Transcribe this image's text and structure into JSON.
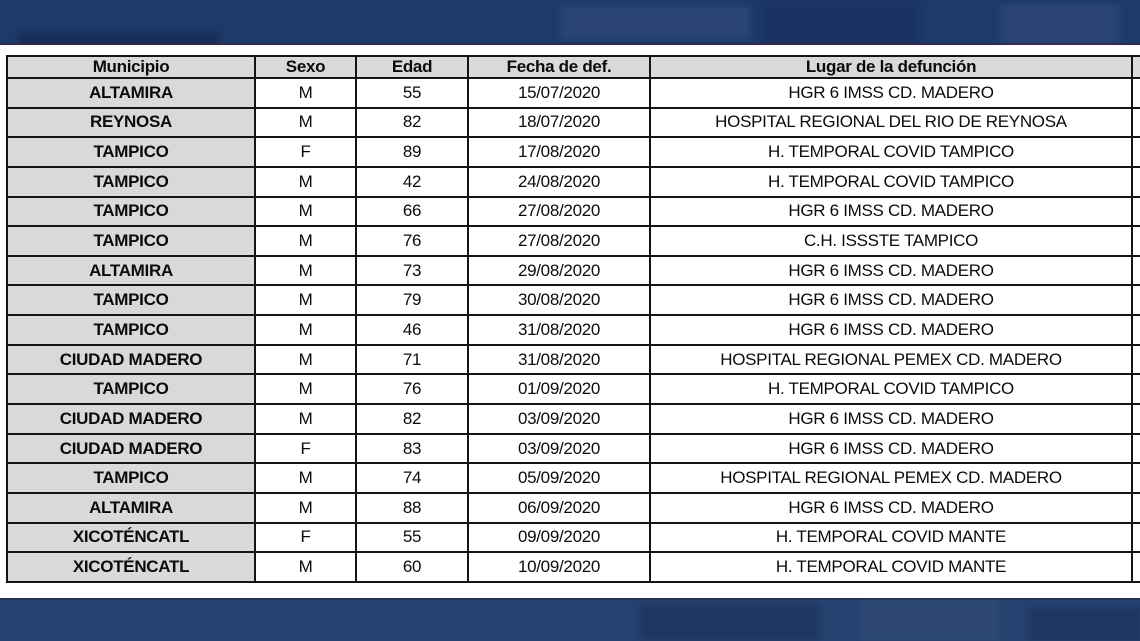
{
  "page": {
    "background": "#ffffff",
    "banner_color": "#1e3a6b",
    "banner_bottom_color": "#25416f"
  },
  "table": {
    "header_bg": "#d9d9d9",
    "border_color": "#141414",
    "columns": [
      "Municipio",
      "Sexo",
      "Edad",
      "Fecha de def.",
      "Lugar de la defunción"
    ],
    "rows": [
      [
        "ALTAMIRA",
        "M",
        "55",
        "15/07/2020",
        "HGR 6 IMSS CD. MADERO"
      ],
      [
        "REYNOSA",
        "M",
        "82",
        "18/07/2020",
        "HOSPITAL REGIONAL DEL RIO DE REYNOSA"
      ],
      [
        "TAMPICO",
        "F",
        "89",
        "17/08/2020",
        "H. TEMPORAL COVID TAMPICO"
      ],
      [
        "TAMPICO",
        "M",
        "42",
        "24/08/2020",
        "H. TEMPORAL COVID TAMPICO"
      ],
      [
        "TAMPICO",
        "M",
        "66",
        "27/08/2020",
        "HGR 6 IMSS CD. MADERO"
      ],
      [
        "TAMPICO",
        "M",
        "76",
        "27/08/2020",
        "C.H. ISSSTE TAMPICO"
      ],
      [
        "ALTAMIRA",
        "M",
        "73",
        "29/08/2020",
        "HGR 6 IMSS CD. MADERO"
      ],
      [
        "TAMPICO",
        "M",
        "79",
        "30/08/2020",
        "HGR 6 IMSS CD. MADERO"
      ],
      [
        "TAMPICO",
        "M",
        "46",
        "31/08/2020",
        "HGR 6 IMSS CD. MADERO"
      ],
      [
        "CIUDAD MADERO",
        "M",
        "71",
        "31/08/2020",
        "HOSPITAL REGIONAL PEMEX CD. MADERO"
      ],
      [
        "TAMPICO",
        "M",
        "76",
        "01/09/2020",
        "H. TEMPORAL COVID TAMPICO"
      ],
      [
        "CIUDAD MADERO",
        "M",
        "82",
        "03/09/2020",
        "HGR 6 IMSS CD. MADERO"
      ],
      [
        "CIUDAD MADERO",
        "F",
        "83",
        "03/09/2020",
        "HGR 6 IMSS CD. MADERO"
      ],
      [
        "TAMPICO",
        "M",
        "74",
        "05/09/2020",
        "HOSPITAL REGIONAL PEMEX CD. MADERO"
      ],
      [
        "ALTAMIRA",
        "M",
        "88",
        "06/09/2020",
        "HGR 6 IMSS CD. MADERO"
      ],
      [
        "XICOTÉNCATL",
        "F",
        "55",
        "09/09/2020",
        "H. TEMPORAL COVID MANTE"
      ],
      [
        "XICOTÉNCATL",
        "M",
        "60",
        "10/09/2020",
        "H. TEMPORAL COVID MANTE"
      ]
    ]
  }
}
